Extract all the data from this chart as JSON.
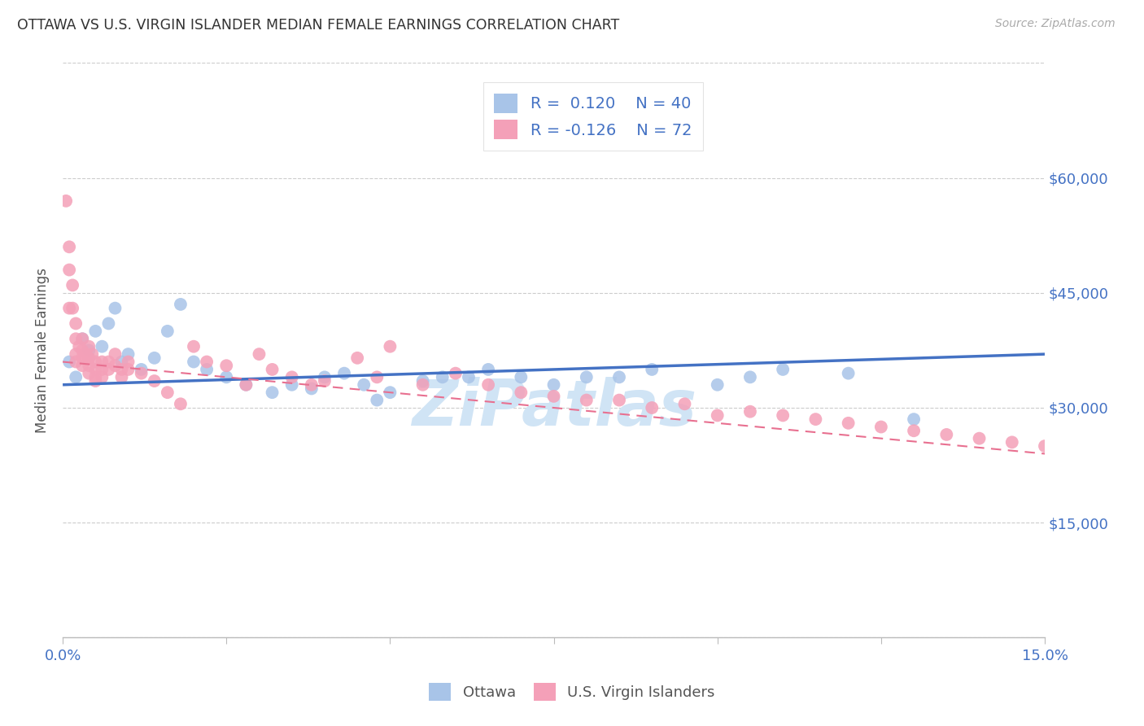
{
  "title": "OTTAWA VS U.S. VIRGIN ISLANDER MEDIAN FEMALE EARNINGS CORRELATION CHART",
  "source": "Source: ZipAtlas.com",
  "ylabel": "Median Female Earnings",
  "xlim": [
    0.0,
    0.15
  ],
  "ylim": [
    0,
    75000
  ],
  "yticks": [
    0,
    15000,
    30000,
    45000,
    60000,
    75000
  ],
  "xticks": [
    0.0,
    0.025,
    0.05,
    0.075,
    0.1,
    0.125,
    0.15
  ],
  "title_color": "#333333",
  "source_color": "#aaaaaa",
  "axis_label_color": "#555555",
  "tick_label_color": "#4472c4",
  "grid_color": "#cccccc",
  "background_color": "#ffffff",
  "ottawa_color": "#a8c4e8",
  "vi_color": "#f4a0b8",
  "ottawa_line_color": "#4472c4",
  "vi_line_color": "#e87090",
  "watermark": "ZiPatlas",
  "watermark_color": "#d0e4f5",
  "ottawa_legend": "Ottawa",
  "vi_legend": "U.S. Virgin Islanders",
  "ottawa_trend_x0": 0.0,
  "ottawa_trend_y0": 33000,
  "ottawa_trend_x1": 0.15,
  "ottawa_trend_y1": 37000,
  "vi_trend_x0": 0.0,
  "vi_trend_y0": 36000,
  "vi_trend_x1": 0.15,
  "vi_trend_y1": 24000,
  "ottawa_x": [
    0.001,
    0.002,
    0.003,
    0.004,
    0.005,
    0.006,
    0.007,
    0.008,
    0.009,
    0.01,
    0.012,
    0.014,
    0.016,
    0.018,
    0.02,
    0.022,
    0.025,
    0.028,
    0.032,
    0.035,
    0.038,
    0.04,
    0.043,
    0.046,
    0.048,
    0.05,
    0.055,
    0.058,
    0.062,
    0.065,
    0.07,
    0.075,
    0.08,
    0.085,
    0.09,
    0.1,
    0.105,
    0.11,
    0.12,
    0.13
  ],
  "ottawa_y": [
    36000,
    34000,
    39000,
    37500,
    40000,
    38000,
    41000,
    43000,
    36000,
    37000,
    35000,
    36500,
    40000,
    43500,
    36000,
    35000,
    34000,
    33000,
    32000,
    33000,
    32500,
    34000,
    34500,
    33000,
    31000,
    32000,
    33500,
    34000,
    34000,
    35000,
    34000,
    33000,
    34000,
    34000,
    35000,
    33000,
    34000,
    35000,
    34500,
    28500
  ],
  "vi_x": [
    0.0005,
    0.001,
    0.001,
    0.001,
    0.0015,
    0.0015,
    0.002,
    0.002,
    0.002,
    0.002,
    0.0025,
    0.003,
    0.003,
    0.003,
    0.003,
    0.0035,
    0.004,
    0.004,
    0.004,
    0.004,
    0.0045,
    0.005,
    0.005,
    0.005,
    0.005,
    0.006,
    0.006,
    0.006,
    0.007,
    0.007,
    0.008,
    0.008,
    0.009,
    0.009,
    0.01,
    0.01,
    0.012,
    0.014,
    0.016,
    0.018,
    0.02,
    0.022,
    0.025,
    0.028,
    0.03,
    0.032,
    0.035,
    0.038,
    0.04,
    0.045,
    0.048,
    0.05,
    0.055,
    0.06,
    0.065,
    0.07,
    0.075,
    0.08,
    0.085,
    0.09,
    0.095,
    0.1,
    0.105,
    0.11,
    0.115,
    0.12,
    0.125,
    0.13,
    0.135,
    0.14,
    0.145,
    0.15
  ],
  "vi_y": [
    57000,
    51000,
    48000,
    43000,
    46000,
    43000,
    41000,
    39000,
    37000,
    36000,
    38000,
    39000,
    37500,
    36500,
    35500,
    37000,
    38000,
    36500,
    35500,
    34500,
    37000,
    36000,
    35000,
    34000,
    33500,
    36000,
    35000,
    34000,
    36000,
    35000,
    37000,
    35500,
    35000,
    34000,
    36000,
    35000,
    34500,
    33500,
    32000,
    30500,
    38000,
    36000,
    35500,
    33000,
    37000,
    35000,
    34000,
    33000,
    33500,
    36500,
    34000,
    38000,
    33000,
    34500,
    33000,
    32000,
    31500,
    31000,
    31000,
    30000,
    30500,
    29000,
    29500,
    29000,
    28500,
    28000,
    27500,
    27000,
    26500,
    26000,
    25500,
    25000
  ]
}
